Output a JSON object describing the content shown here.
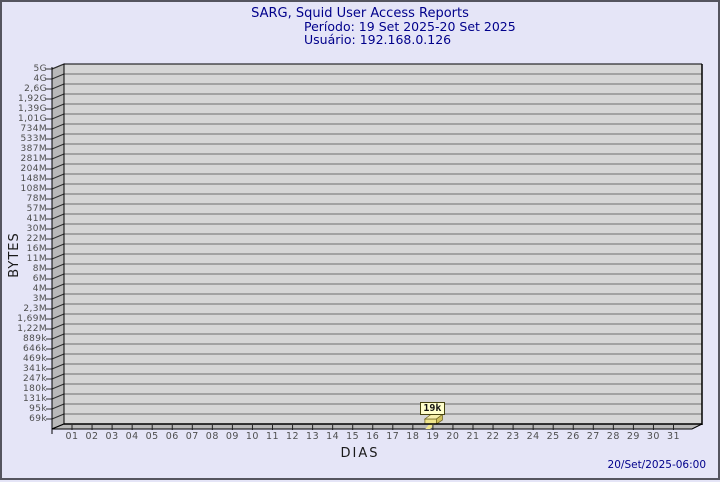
{
  "header": {
    "title": "SARG, Squid User Access Reports",
    "period": "Período: 19 Set 2025-20 Set 2025",
    "user": "Usuário: 192.168.0.126"
  },
  "footer": {
    "generated": "20/Set/2025-06:00"
  },
  "chart_data": {
    "type": "bar",
    "title": "SARG, Squid User Access Reports",
    "subtitle_period": "Período: 19 Set 2025-20 Set 2025",
    "subtitle_user": "Usuário: 192.168.0.126",
    "xlabel": "DIAS",
    "ylabel": "BYTES",
    "y_scale": "log-like",
    "grid": true,
    "legend": null,
    "y_range": {
      "min_label": "69k",
      "max_label": "5G"
    },
    "y_tick_labels": [
      "5G",
      "4G",
      "2,6G",
      "1,92G",
      "1,39G",
      "1,01G",
      "734M",
      "533M",
      "387M",
      "281M",
      "204M",
      "148M",
      "108M",
      "78M",
      "57M",
      "41M",
      "30M",
      "22M",
      "16M",
      "11M",
      "8M",
      "6M",
      "4M",
      "3M",
      "2,3M",
      "1,69M",
      "1,22M",
      "889k",
      "646k",
      "469k",
      "341k",
      "247k",
      "180k",
      "131k",
      "95k",
      "69k"
    ],
    "categories": [
      "01",
      "02",
      "03",
      "04",
      "05",
      "06",
      "07",
      "08",
      "09",
      "10",
      "11",
      "12",
      "13",
      "14",
      "15",
      "16",
      "17",
      "18",
      "19",
      "20",
      "21",
      "22",
      "23",
      "24",
      "25",
      "26",
      "27",
      "28",
      "29",
      "30",
      "31"
    ],
    "values": [
      null,
      null,
      null,
      null,
      null,
      null,
      null,
      null,
      null,
      null,
      null,
      null,
      null,
      null,
      null,
      null,
      null,
      null,
      19000,
      null,
      null,
      null,
      null,
      null,
      null,
      null,
      null,
      null,
      null,
      null,
      null
    ],
    "data_points": [
      {
        "day": "19",
        "label": "19k",
        "value_bytes": 19000
      }
    ],
    "colors": {
      "background": "#e5e5f7",
      "plot_fill": "#d6d6d6",
      "wall_fill": "#b9b9b9",
      "gridline": "#6e6e6e",
      "frame": "#000000",
      "bar": "#f0e68c",
      "bar_top": "#f6efac",
      "bar_side": "#cfc05c",
      "tooltip_bg": "#ffffcc",
      "title_color": "#00008b"
    }
  }
}
